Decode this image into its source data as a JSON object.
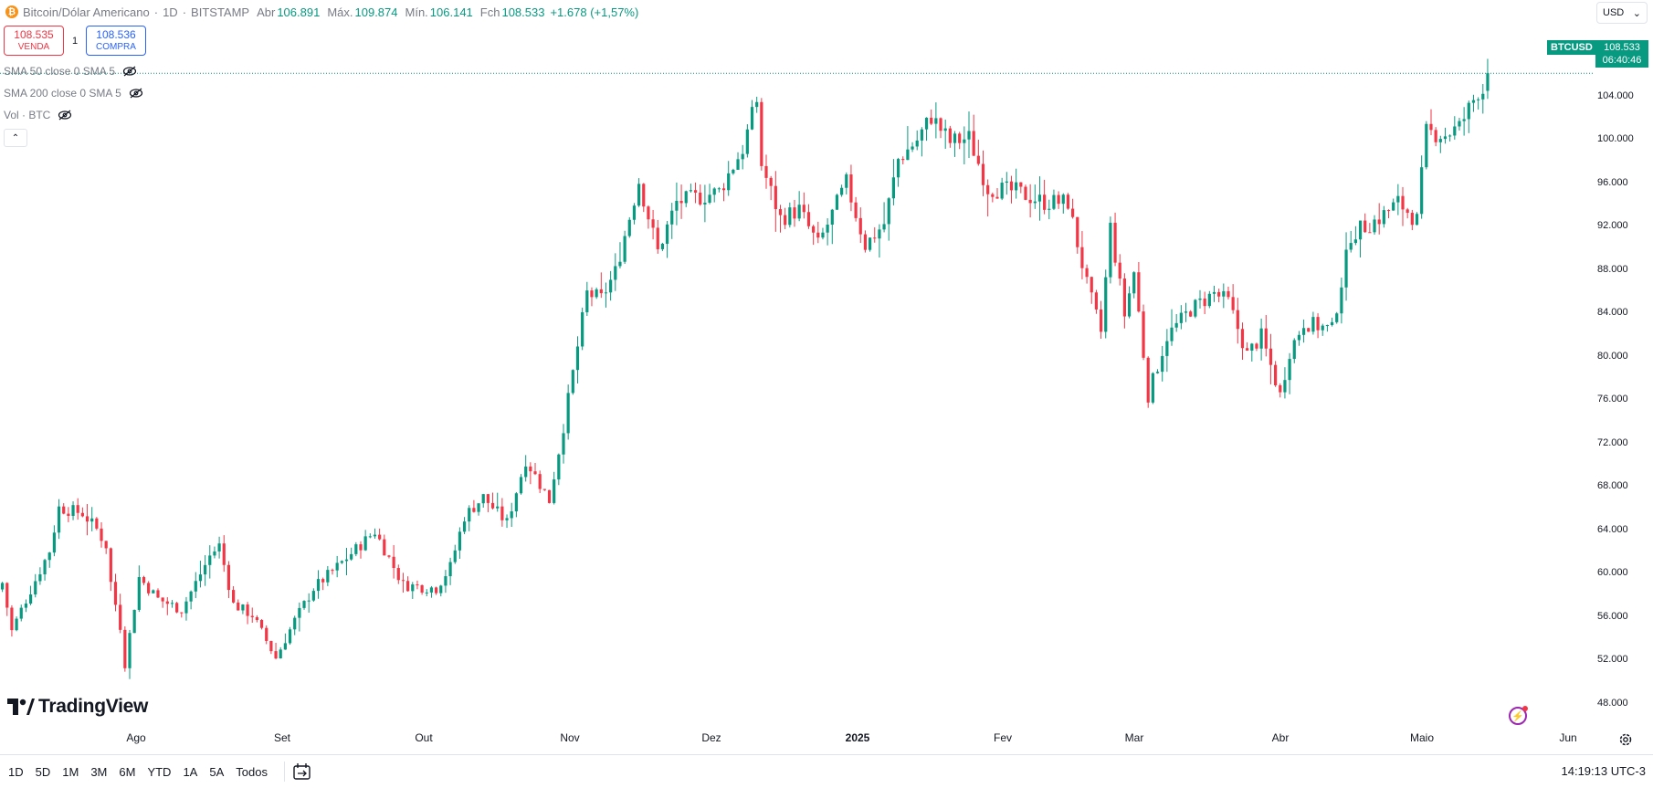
{
  "header": {
    "symbol_name": "Bitcoin/Dólar Americano",
    "interval": "1D",
    "exchange": "BITSTAMP",
    "open_label": "Abr",
    "open": "106.891",
    "high_label": "Máx.",
    "high": "109.874",
    "low_label": "Mín.",
    "low": "106.141",
    "close_label": "Fch",
    "close": "108.533",
    "change": "+1.678 (+1,57%)"
  },
  "trade": {
    "sell_price": "108.535",
    "sell_label": "VENDA",
    "spread": "1",
    "buy_price": "108.536",
    "buy_label": "COMPRA"
  },
  "indicators": [
    {
      "label": "SMA 50 close 0 SMA 5"
    },
    {
      "label": "SMA 200 close 0 SMA 5"
    },
    {
      "label": "Vol · BTC"
    }
  ],
  "currency_selector": "USD",
  "last_price": {
    "symbol": "BTCUSD",
    "price": "108.533",
    "countdown": "06:40:46"
  },
  "y_axis_labels": [
    "104.000",
    "100.000",
    "96.000",
    "92.000",
    "88.000",
    "84.000",
    "80.000",
    "76.000",
    "72.000",
    "68.000",
    "64.000",
    "60.000",
    "56.000",
    "52.000",
    "48.000"
  ],
  "x_axis_labels": [
    "Ago",
    "Set",
    "Out",
    "Nov",
    "Dez",
    "2025",
    "Fev",
    "Mar",
    "Abr",
    "Maio",
    "Jun"
  ],
  "brand": "TradingView",
  "range_buttons": [
    "1D",
    "5D",
    "1M",
    "3M",
    "6M",
    "YTD",
    "1A",
    "5A",
    "Todos"
  ],
  "clock": "14:19:13 UTC-3",
  "colors": {
    "up": "#089981",
    "down": "#f23645",
    "grid": "#ffffff",
    "accent": "#2962ff"
  },
  "chart_data": {
    "type": "candlestick",
    "ylim": [
      46000,
      112000
    ],
    "x": [
      "2024-07-10",
      "2025-05-21"
    ],
    "anchors": [
      [
        "2024-07-10",
        61000
      ],
      [
        "2024-07-12",
        56500
      ],
      [
        "2024-07-14",
        58500
      ],
      [
        "2024-07-20",
        64000
      ],
      [
        "2024-07-22",
        68000
      ],
      [
        "2024-07-27",
        67500
      ],
      [
        "2024-07-30",
        66000
      ],
      [
        "2024-08-01",
        64500
      ],
      [
        "2024-08-02",
        61000
      ],
      [
        "2024-08-04",
        57000
      ],
      [
        "2024-08-05",
        53500
      ],
      [
        "2024-08-08",
        61500
      ],
      [
        "2024-08-12",
        59500
      ],
      [
        "2024-08-17",
        58500
      ],
      [
        "2024-08-23",
        63500
      ],
      [
        "2024-08-25",
        64500
      ],
      [
        "2024-08-28",
        59000
      ],
      [
        "2024-09-01",
        58000
      ],
      [
        "2024-09-06",
        54000
      ],
      [
        "2024-09-10",
        57500
      ],
      [
        "2024-09-14",
        60500
      ],
      [
        "2024-09-19",
        62500
      ],
      [
        "2024-09-27",
        65800
      ],
      [
        "2024-10-03",
        60800
      ],
      [
        "2024-10-10",
        60500
      ],
      [
        "2024-10-13",
        62500
      ],
      [
        "2024-10-16",
        67200
      ],
      [
        "2024-10-20",
        69000
      ],
      [
        "2024-10-25",
        66600
      ],
      [
        "2024-10-29",
        72500
      ],
      [
        "2024-11-03",
        68700
      ],
      [
        "2024-11-06",
        75600
      ],
      [
        "2024-11-11",
        88000
      ],
      [
        "2024-11-14",
        87500
      ],
      [
        "2024-11-17",
        90000
      ],
      [
        "2024-11-22",
        98500
      ],
      [
        "2024-11-26",
        91900
      ],
      [
        "2024-11-30",
        96500
      ],
      [
        "2024-12-05",
        97000
      ],
      [
        "2024-12-09",
        97500
      ],
      [
        "2024-12-14",
        101500
      ],
      [
        "2024-12-17",
        106000
      ],
      [
        "2024-12-18",
        100000
      ],
      [
        "2024-12-22",
        95000
      ],
      [
        "2024-12-26",
        95800
      ],
      [
        "2024-12-30",
        92500
      ],
      [
        "2025-01-05",
        98300
      ],
      [
        "2025-01-09",
        92500
      ],
      [
        "2025-01-13",
        94500
      ],
      [
        "2025-01-16",
        100500
      ],
      [
        "2025-01-20",
        102300
      ],
      [
        "2025-01-23",
        104500
      ],
      [
        "2025-01-27",
        102100
      ],
      [
        "2025-01-31",
        102500
      ],
      [
        "2025-02-04",
        97800
      ],
      [
        "2025-02-10",
        97500
      ],
      [
        "2025-02-16",
        96500
      ],
      [
        "2025-02-21",
        96500
      ],
      [
        "2025-02-25",
        88800
      ],
      [
        "2025-02-28",
        84400
      ],
      [
        "2025-03-02",
        94200
      ],
      [
        "2025-03-05",
        86000
      ],
      [
        "2025-03-07",
        90000
      ],
      [
        "2025-03-10",
        78500
      ],
      [
        "2025-03-14",
        84000
      ],
      [
        "2025-03-19",
        86500
      ],
      [
        "2025-03-24",
        88000
      ],
      [
        "2025-03-27",
        87200
      ],
      [
        "2025-03-31",
        82300
      ],
      [
        "2025-04-03",
        84000
      ],
      [
        "2025-04-07",
        78500
      ],
      [
        "2025-04-09",
        82600
      ],
      [
        "2025-04-12",
        85300
      ],
      [
        "2025-04-18",
        84600
      ],
      [
        "2025-04-22",
        93500
      ],
      [
        "2025-04-28",
        95000
      ],
      [
        "2025-05-02",
        96500
      ],
      [
        "2025-05-06",
        94800
      ],
      [
        "2025-05-08",
        103000
      ],
      [
        "2025-05-12",
        102800
      ],
      [
        "2025-05-15",
        103500
      ],
      [
        "2025-05-19",
        106891
      ],
      [
        "2025-05-20",
        106891
      ],
      [
        "2025-05-21",
        108533
      ]
    ],
    "last_candle": {
      "date": "2025-05-21",
      "open": 106891,
      "high": 109874,
      "low": 106141,
      "close": 108533
    }
  }
}
